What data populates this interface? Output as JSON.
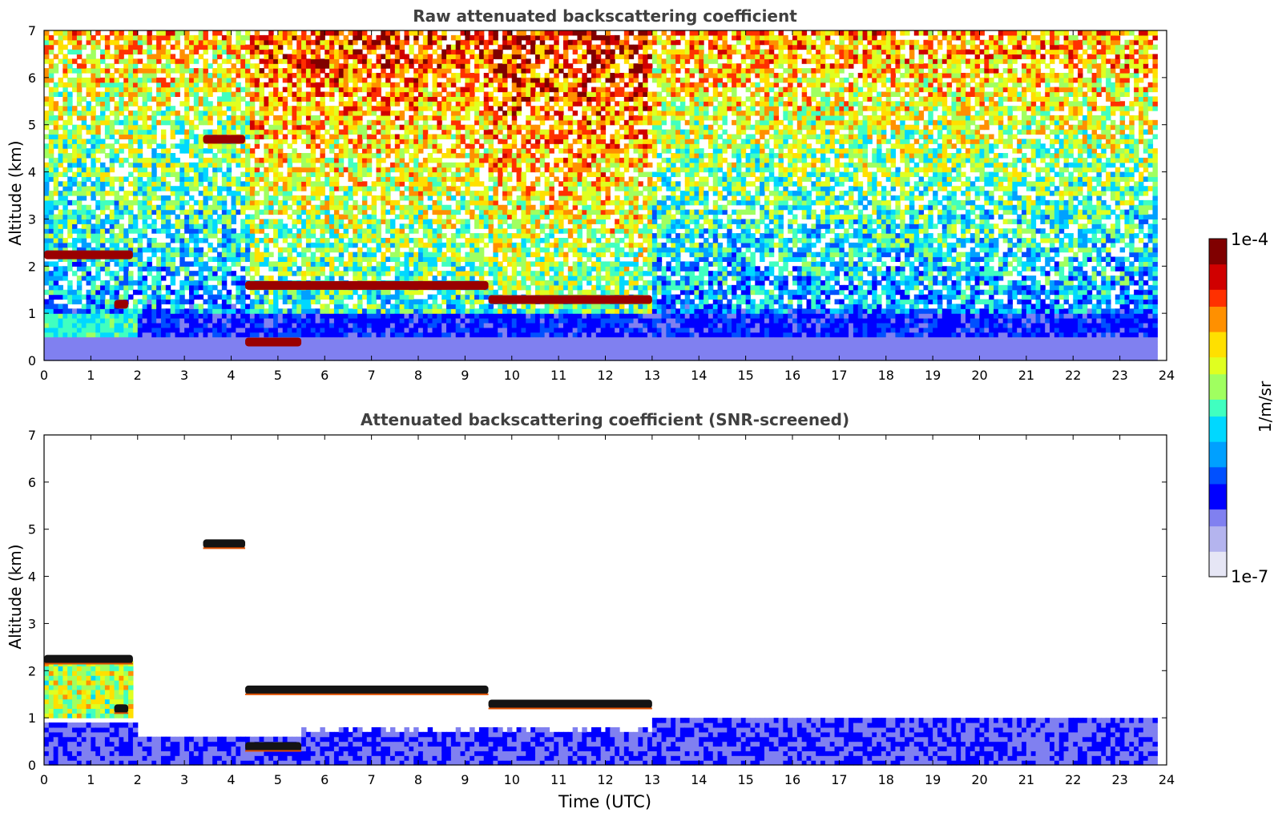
{
  "figure": {
    "colorbar": {
      "label": "1/m/sr",
      "max_label": "1e-4",
      "min_label": "1e-7",
      "colormap": [
        "#e6e6f5",
        "#b4b4ee",
        "#8080f0",
        "#0000ff",
        "#0050ff",
        "#00a0ff",
        "#00d8ff",
        "#40ffc0",
        "#a0ff60",
        "#e0ff20",
        "#ffe000",
        "#ff9000",
        "#ff3000",
        "#d00000",
        "#800000"
      ]
    }
  },
  "chart_data": [
    {
      "type": "heatmap",
      "title": "Raw attenuated backscattering coefficient",
      "xlabel": "",
      "ylabel": "Altitude (km)",
      "xlim": [
        0,
        24
      ],
      "ylim": [
        0,
        7
      ],
      "x_ticks": [
        "0",
        "1",
        "2",
        "3",
        "4",
        "5",
        "6",
        "7",
        "8",
        "9",
        "10",
        "11",
        "12",
        "13",
        "14",
        "15",
        "16",
        "17",
        "18",
        "19",
        "20",
        "21",
        "22",
        "23",
        "24"
      ],
      "y_ticks": [
        "0",
        "1",
        "2",
        "3",
        "4",
        "5",
        "6",
        "7"
      ],
      "color_scale": "log",
      "data_time_range": [
        0,
        23.8
      ],
      "cloud_layers": [
        {
          "time_start": 0.0,
          "time_end": 1.9,
          "altitude_km": 2.25
        },
        {
          "time_start": 3.4,
          "time_end": 4.3,
          "altitude_km": 4.7
        },
        {
          "time_start": 4.3,
          "time_end": 9.5,
          "altitude_km": 1.6
        },
        {
          "time_start": 9.5,
          "time_end": 13.0,
          "altitude_km": 1.3
        },
        {
          "time_start": 1.5,
          "time_end": 1.8,
          "altitude_km": 1.2
        },
        {
          "time_start": 4.3,
          "time_end": 5.5,
          "altitude_km": 0.4
        }
      ],
      "boundary_layer_top_km": 0.9
    },
    {
      "type": "heatmap",
      "title": "Attenuated backscattering coefficient (SNR-screened)",
      "xlabel": "Time (UTC)",
      "ylabel": "Altitude (km)",
      "xlim": [
        0,
        24
      ],
      "ylim": [
        0,
        7
      ],
      "x_ticks": [
        "0",
        "1",
        "2",
        "3",
        "4",
        "5",
        "6",
        "7",
        "8",
        "9",
        "10",
        "11",
        "12",
        "13",
        "14",
        "15",
        "16",
        "17",
        "18",
        "19",
        "20",
        "21",
        "22",
        "23",
        "24"
      ],
      "y_ticks": [
        "0",
        "1",
        "2",
        "3",
        "4",
        "5",
        "6",
        "7"
      ],
      "color_scale": "log",
      "data_time_range": [
        0,
        23.8
      ],
      "screened": true
    }
  ]
}
